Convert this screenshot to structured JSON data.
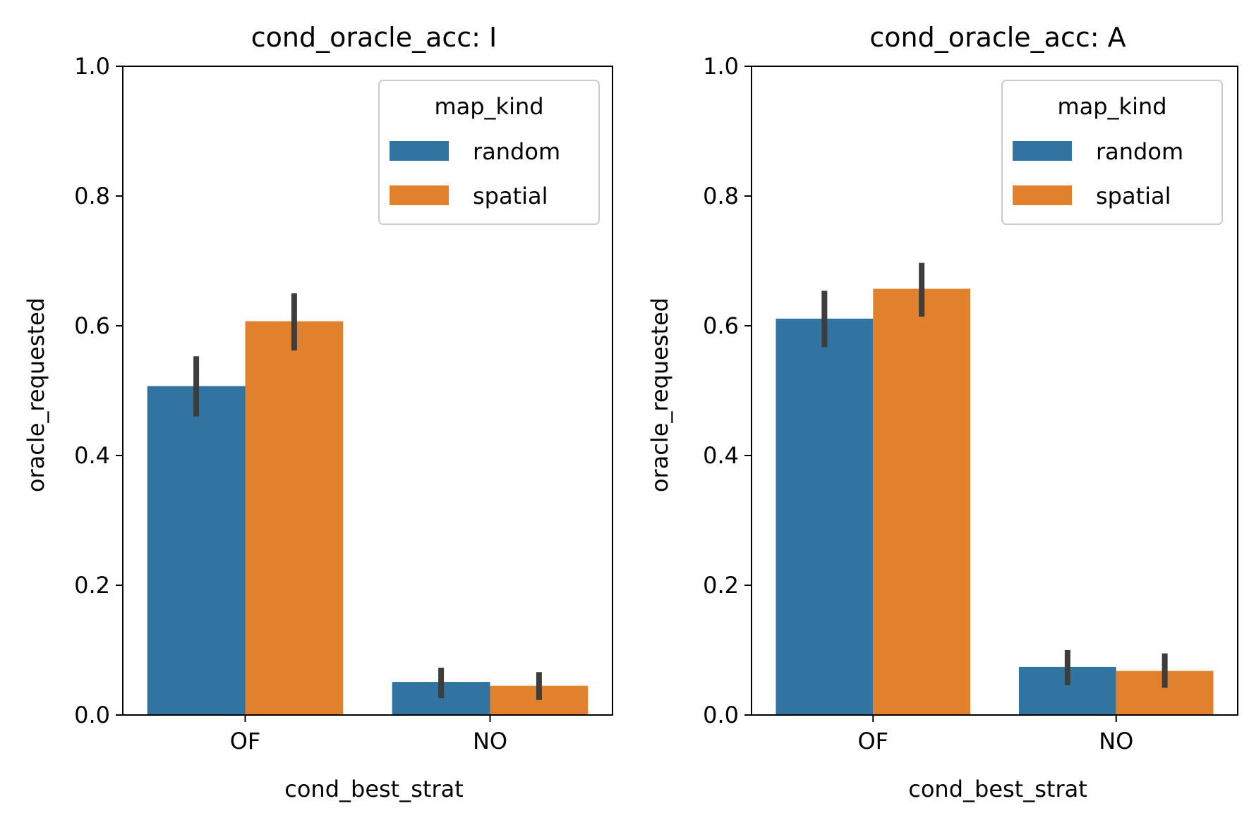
{
  "chart_data": [
    {
      "type": "bar",
      "title": "cond_oracle_acc: I",
      "xlabel": "cond_best_strat",
      "ylabel": "oracle_requested",
      "categories": [
        "OF",
        "NO"
      ],
      "ylim": [
        0,
        1
      ],
      "yticks": [
        "0.0",
        "0.2",
        "0.4",
        "0.6",
        "0.8",
        "1.0"
      ],
      "legend": {
        "title": "map_kind",
        "position": "top-right"
      },
      "series": [
        {
          "name": "random",
          "values": [
            0.507,
            0.051
          ],
          "ci_low": [
            0.46,
            0.026
          ],
          "ci_high": [
            0.553,
            0.073
          ]
        },
        {
          "name": "spatial",
          "values": [
            0.607,
            0.045
          ],
          "ci_low": [
            0.562,
            0.023
          ],
          "ci_high": [
            0.65,
            0.066
          ]
        }
      ]
    },
    {
      "type": "bar",
      "title": "cond_oracle_acc: A",
      "xlabel": "cond_best_strat",
      "ylabel": "oracle_requested",
      "categories": [
        "OF",
        "NO"
      ],
      "ylim": [
        0,
        1
      ],
      "yticks": [
        "0.0",
        "0.2",
        "0.4",
        "0.6",
        "0.8",
        "1.0"
      ],
      "legend": {
        "title": "map_kind",
        "position": "top-right"
      },
      "series": [
        {
          "name": "random",
          "values": [
            0.611,
            0.074
          ],
          "ci_low": [
            0.567,
            0.046
          ],
          "ci_high": [
            0.654,
            0.1
          ]
        },
        {
          "name": "spatial",
          "values": [
            0.657,
            0.068
          ],
          "ci_low": [
            0.614,
            0.042
          ],
          "ci_high": [
            0.697,
            0.095
          ]
        }
      ]
    }
  ],
  "colors": {
    "random": "#3274a1",
    "spatial": "#e1812c",
    "errorbar": "#3d3d3d"
  }
}
